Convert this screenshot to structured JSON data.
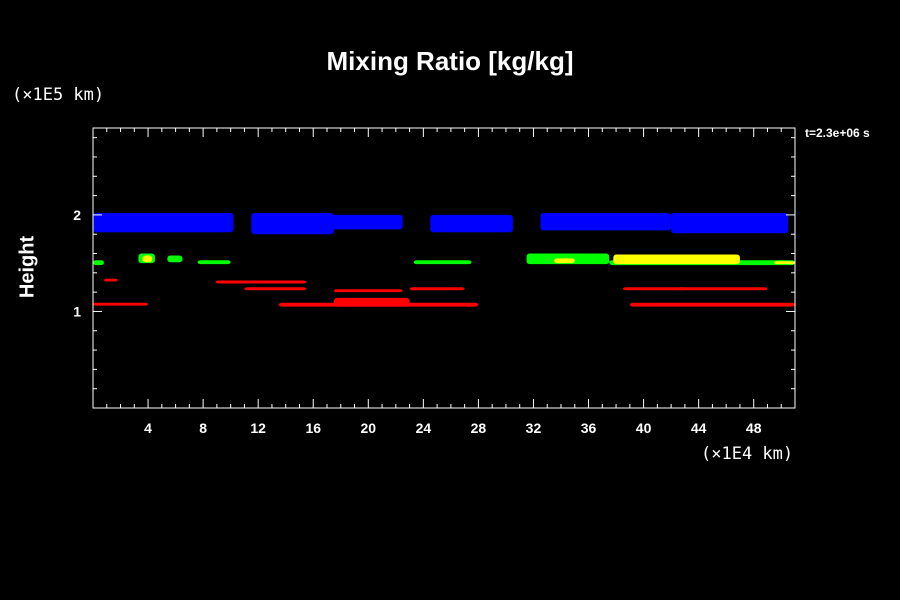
{
  "chart_data": {
    "type": "heatmap",
    "title": "Mixing Ratio [kg/kg]",
    "ylabel": "Height",
    "y_unit": "(×1E5 km)",
    "x_unit": "(×1E4 km)",
    "time_label": "t=2.3e+06 s",
    "xlim": [
      0,
      51
    ],
    "ylim": [
      0,
      2.9
    ],
    "x_ticks": [
      "4",
      "8",
      "12",
      "16",
      "20",
      "24",
      "28",
      "32",
      "36",
      "40",
      "44",
      "48"
    ],
    "y_ticks": [
      "1",
      "2"
    ],
    "colors": {
      "blue": "#0000ff",
      "green": "#00ff00",
      "yellow": "#ffff00",
      "red": "#ff0000"
    },
    "regions": [
      {
        "color": "blue",
        "x": [
          0,
          10.2
        ],
        "y": [
          1.82,
          2.02
        ]
      },
      {
        "color": "blue",
        "x": [
          11.5,
          17.5
        ],
        "y": [
          1.8,
          2.02
        ]
      },
      {
        "color": "blue",
        "x": [
          16.5,
          22.5
        ],
        "y": [
          1.85,
          2.0
        ]
      },
      {
        "color": "blue",
        "x": [
          24.5,
          30.5
        ],
        "y": [
          1.82,
          2.0
        ]
      },
      {
        "color": "blue",
        "x": [
          32.5,
          42
        ],
        "y": [
          1.84,
          2.02
        ]
      },
      {
        "color": "blue",
        "x": [
          42,
          50.5
        ],
        "y": [
          1.81,
          2.02
        ]
      },
      {
        "color": "green",
        "x": [
          0,
          0.8
        ],
        "y": [
          1.48,
          1.53
        ]
      },
      {
        "color": "green",
        "x": [
          3.3,
          4.5
        ],
        "y": [
          1.5,
          1.6
        ]
      },
      {
        "color": "green",
        "x": [
          5.4,
          6.5
        ],
        "y": [
          1.51,
          1.58
        ]
      },
      {
        "color": "green",
        "x": [
          7.6,
          10
        ],
        "y": [
          1.49,
          1.53
        ]
      },
      {
        "color": "green",
        "x": [
          23.3,
          27.5
        ],
        "y": [
          1.49,
          1.53
        ]
      },
      {
        "color": "green",
        "x": [
          31.5,
          37.5
        ],
        "y": [
          1.49,
          1.6
        ]
      },
      {
        "color": "green",
        "x": [
          37.5,
          51
        ],
        "y": [
          1.48,
          1.53
        ]
      },
      {
        "color": "yellow",
        "x": [
          3.6,
          4.3
        ],
        "y": [
          1.51,
          1.58
        ]
      },
      {
        "color": "yellow",
        "x": [
          33.5,
          35
        ],
        "y": [
          1.5,
          1.55
        ]
      },
      {
        "color": "yellow",
        "x": [
          37.8,
          47
        ],
        "y": [
          1.49,
          1.59
        ]
      },
      {
        "color": "yellow",
        "x": [
          49.5,
          51
        ],
        "y": [
          1.49,
          1.52
        ]
      },
      {
        "color": "red",
        "x": [
          0.8,
          1.8
        ],
        "y": [
          1.31,
          1.34
        ]
      },
      {
        "color": "red",
        "x": [
          8.9,
          15.5
        ],
        "y": [
          1.29,
          1.32
        ]
      },
      {
        "color": "red",
        "x": [
          11,
          15.5
        ],
        "y": [
          1.22,
          1.25
        ]
      },
      {
        "color": "red",
        "x": [
          17.5,
          22.5
        ],
        "y": [
          1.2,
          1.23
        ]
      },
      {
        "color": "red",
        "x": [
          23,
          27
        ],
        "y": [
          1.22,
          1.25
        ]
      },
      {
        "color": "red",
        "x": [
          0,
          4
        ],
        "y": [
          1.06,
          1.09
        ]
      },
      {
        "color": "red",
        "x": [
          13.5,
          28
        ],
        "y": [
          1.05,
          1.09
        ]
      },
      {
        "color": "red",
        "x": [
          17.5,
          23
        ],
        "y": [
          1.05,
          1.14
        ]
      },
      {
        "color": "red",
        "x": [
          38.5,
          43
        ],
        "y": [
          1.22,
          1.25
        ]
      },
      {
        "color": "red",
        "x": [
          42.5,
          49
        ],
        "y": [
          1.22,
          1.25
        ]
      },
      {
        "color": "red",
        "x": [
          39,
          51
        ],
        "y": [
          1.05,
          1.09
        ]
      }
    ]
  }
}
